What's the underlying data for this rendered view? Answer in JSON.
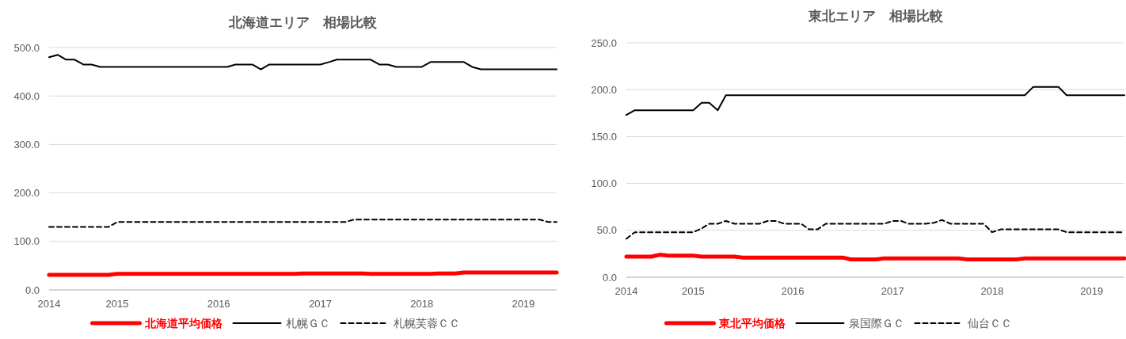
{
  "chart_data": [
    {
      "type": "line",
      "title": "北海道エリア　相場比較",
      "x": [
        "2014-05",
        "2014-06",
        "2014-07",
        "2014-08",
        "2014-09",
        "2014-10",
        "2014-11",
        "2014-12",
        "2015-01",
        "2015-02",
        "2015-03",
        "2015-04",
        "2015-05",
        "2015-06",
        "2015-07",
        "2015-08",
        "2015-09",
        "2015-10",
        "2015-11",
        "2015-12",
        "2016-01",
        "2016-02",
        "2016-03",
        "2016-04",
        "2016-05",
        "2016-06",
        "2016-07",
        "2016-08",
        "2016-09",
        "2016-10",
        "2016-11",
        "2016-12",
        "2017-01",
        "2017-02",
        "2017-03",
        "2017-04",
        "2017-05",
        "2017-06",
        "2017-07",
        "2017-08",
        "2017-09",
        "2017-10",
        "2017-11",
        "2017-12",
        "2018-01",
        "2018-02",
        "2018-03",
        "2018-04",
        "2018-05",
        "2018-06",
        "2018-07",
        "2018-08",
        "2018-09",
        "2018-10",
        "2018-11",
        "2018-12",
        "2019-01",
        "2019-02",
        "2019-03",
        "2019-04",
        "2019-05"
      ],
      "series": [
        {
          "name": "北海道平均価格",
          "color": "#ff0000",
          "line_style": "solid",
          "values": [
            31,
            31,
            31,
            31,
            31,
            31,
            31,
            31,
            33,
            33,
            33,
            33,
            33,
            33,
            33,
            33,
            33,
            33,
            33,
            33,
            33,
            33,
            33,
            33,
            33,
            33,
            33,
            33,
            33,
            33,
            34,
            34,
            34,
            34,
            34,
            34,
            34,
            34,
            33,
            33,
            33,
            33,
            33,
            33,
            33,
            33,
            34,
            34,
            34,
            36,
            36,
            36,
            36,
            36,
            36,
            36,
            36,
            36,
            36,
            36,
            36
          ]
        },
        {
          "name": "札幌ＧＣ",
          "color": "#000000",
          "line_style": "solid",
          "values": [
            480,
            485,
            475,
            475,
            465,
            465,
            460,
            460,
            460,
            460,
            460,
            460,
            460,
            460,
            460,
            460,
            460,
            460,
            460,
            460,
            460,
            460,
            465,
            465,
            465,
            455,
            465,
            465,
            465,
            465,
            465,
            465,
            465,
            470,
            475,
            475,
            475,
            475,
            475,
            465,
            465,
            460,
            460,
            460,
            460,
            470,
            470,
            470,
            470,
            470,
            460,
            455,
            455,
            455,
            455,
            455,
            455,
            455,
            455,
            455,
            455
          ]
        },
        {
          "name": "札幌芙蓉ＣＣ",
          "color": "#000000",
          "line_style": "dashed",
          "values": [
            130,
            130,
            130,
            130,
            130,
            130,
            130,
            130,
            140,
            140,
            140,
            140,
            140,
            140,
            140,
            140,
            140,
            140,
            140,
            140,
            140,
            140,
            140,
            140,
            140,
            140,
            140,
            140,
            140,
            140,
            140,
            140,
            140,
            140,
            140,
            140,
            145,
            145,
            145,
            145,
            145,
            145,
            145,
            145,
            145,
            145,
            145,
            145,
            145,
            145,
            145,
            145,
            145,
            145,
            145,
            145,
            145,
            145,
            145,
            140,
            140
          ]
        }
      ],
      "xlim": [
        "2014-05",
        "2019-05"
      ],
      "xticks": [
        {
          "value": "2014-05",
          "label": "2014"
        },
        {
          "value": "2015-01",
          "label": "2015"
        },
        {
          "value": "2016-01",
          "label": "2016"
        },
        {
          "value": "2017-01",
          "label": "2017"
        },
        {
          "value": "2018-01",
          "label": "2018"
        },
        {
          "value": "2019-01",
          "label": "2019"
        }
      ],
      "ylim": [
        0,
        500
      ],
      "yticks": [
        {
          "value": 0,
          "label": "0.0"
        },
        {
          "value": 100,
          "label": "100.0"
        },
        {
          "value": 200,
          "label": "200.0"
        },
        {
          "value": 300,
          "label": "300.0"
        },
        {
          "value": 400,
          "label": "400.0"
        },
        {
          "value": 500,
          "label": "500.0"
        }
      ],
      "grid": "y",
      "legend": "bottom",
      "marker": "none"
    },
    {
      "type": "line",
      "title": "東北エリア　相場比較",
      "x": [
        "2014-05",
        "2014-06",
        "2014-07",
        "2014-08",
        "2014-09",
        "2014-10",
        "2014-11",
        "2014-12",
        "2015-01",
        "2015-02",
        "2015-03",
        "2015-04",
        "2015-05",
        "2015-06",
        "2015-07",
        "2015-08",
        "2015-09",
        "2015-10",
        "2015-11",
        "2015-12",
        "2016-01",
        "2016-02",
        "2016-03",
        "2016-04",
        "2016-05",
        "2016-06",
        "2016-07",
        "2016-08",
        "2016-09",
        "2016-10",
        "2016-11",
        "2016-12",
        "2017-01",
        "2017-02",
        "2017-03",
        "2017-04",
        "2017-05",
        "2017-06",
        "2017-07",
        "2017-08",
        "2017-09",
        "2017-10",
        "2017-11",
        "2017-12",
        "2018-01",
        "2018-02",
        "2018-03",
        "2018-04",
        "2018-05",
        "2018-06",
        "2018-07",
        "2018-08",
        "2018-09",
        "2018-10",
        "2018-11",
        "2018-12",
        "2019-01",
        "2019-02",
        "2019-03",
        "2019-04",
        "2019-05"
      ],
      "series": [
        {
          "name": "東北平均価格",
          "color": "#ff0000",
          "line_style": "solid",
          "values": [
            22,
            22,
            22,
            22,
            24,
            23,
            23,
            23,
            23,
            22,
            22,
            22,
            22,
            22,
            21,
            21,
            21,
            21,
            21,
            21,
            21,
            21,
            21,
            21,
            21,
            21,
            21,
            19,
            19,
            19,
            19,
            20,
            20,
            20,
            20,
            20,
            20,
            20,
            20,
            20,
            20,
            19,
            19,
            19,
            19,
            19,
            19,
            19,
            20,
            20,
            20,
            20,
            20,
            20,
            20,
            20,
            20,
            20,
            20,
            20,
            20
          ]
        },
        {
          "name": "泉国際ＧＣ",
          "color": "#000000",
          "line_style": "solid",
          "values": [
            173,
            178,
            178,
            178,
            178,
            178,
            178,
            178,
            178,
            186,
            186,
            178,
            194,
            194,
            194,
            194,
            194,
            194,
            194,
            194,
            194,
            194,
            194,
            194,
            194,
            194,
            194,
            194,
            194,
            194,
            194,
            194,
            194,
            194,
            194,
            194,
            194,
            194,
            194,
            194,
            194,
            194,
            194,
            194,
            194,
            194,
            194,
            194,
            194,
            203,
            203,
            203,
            203,
            194,
            194,
            194,
            194,
            194,
            194,
            194,
            194
          ]
        },
        {
          "name": "仙台ＣＣ",
          "color": "#000000",
          "line_style": "dashed",
          "values": [
            41,
            48,
            48,
            48,
            48,
            48,
            48,
            48,
            48,
            52,
            57,
            57,
            60,
            57,
            57,
            57,
            57,
            60,
            60,
            57,
            57,
            57,
            51,
            51,
            57,
            57,
            57,
            57,
            57,
            57,
            57,
            57,
            60,
            60,
            57,
            57,
            57,
            58,
            61,
            57,
            57,
            57,
            57,
            57,
            48,
            51,
            51,
            51,
            51,
            51,
            51,
            51,
            51,
            48,
            48,
            48,
            48,
            48,
            48,
            48,
            48
          ]
        }
      ],
      "xlim": [
        "2014-05",
        "2019-05"
      ],
      "xticks": [
        {
          "value": "2014-05",
          "label": "2014"
        },
        {
          "value": "2015-01",
          "label": "2015"
        },
        {
          "value": "2016-01",
          "label": "2016"
        },
        {
          "value": "2017-01",
          "label": "2017"
        },
        {
          "value": "2018-01",
          "label": "2018"
        },
        {
          "value": "2019-01",
          "label": "2019"
        }
      ],
      "ylim": [
        0,
        250
      ],
      "yticks": [
        {
          "value": 0,
          "label": "0.0"
        },
        {
          "value": 50,
          "label": "50.0"
        },
        {
          "value": 100,
          "label": "100.0"
        },
        {
          "value": 150,
          "label": "150.0"
        },
        {
          "value": 200,
          "label": "200.0"
        },
        {
          "value": 250,
          "label": "250.0"
        }
      ],
      "grid": "y",
      "legend": "bottom",
      "marker": "none"
    }
  ]
}
